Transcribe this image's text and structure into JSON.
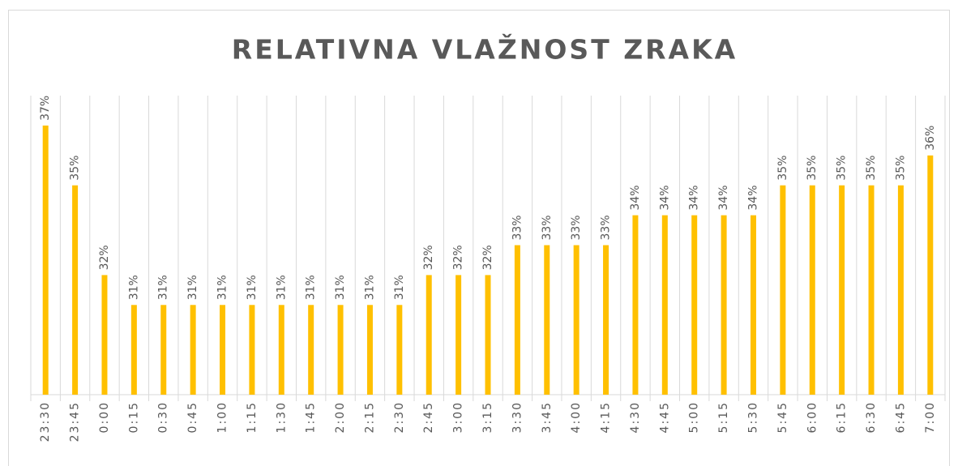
{
  "chart_data": {
    "type": "bar",
    "title": "RELATIVNA VLAŽNOST ZRAKA",
    "categories": [
      "23:30",
      "23:45",
      "0:00",
      "0:15",
      "0:30",
      "0:45",
      "1:00",
      "1:15",
      "1:30",
      "1:45",
      "2:00",
      "2:15",
      "2:30",
      "2:45",
      "3:00",
      "3:15",
      "3:30",
      "3:45",
      "4:00",
      "4:15",
      "4:30",
      "4:45",
      "5:00",
      "5:15",
      "5:30",
      "5:45",
      "6:00",
      "6:15",
      "6:30",
      "6:45",
      "7:00"
    ],
    "values": [
      37,
      35,
      32,
      31,
      31,
      31,
      31,
      31,
      31,
      31,
      31,
      31,
      31,
      32,
      32,
      32,
      33,
      33,
      33,
      33,
      34,
      34,
      34,
      34,
      34,
      35,
      35,
      35,
      35,
      35,
      36
    ],
    "value_labels": [
      "37%",
      "35%",
      "32%",
      "31%",
      "31%",
      "31%",
      "31%",
      "31%",
      "31%",
      "31%",
      "31%",
      "31%",
      "31%",
      "32%",
      "32%",
      "32%",
      "33%",
      "33%",
      "33%",
      "33%",
      "34%",
      "34%",
      "34%",
      "34%",
      "34%",
      "35%",
      "35%",
      "35%",
      "35%",
      "35%",
      "36%"
    ],
    "color": "#ffc000",
    "ylim": [
      28,
      38
    ]
  }
}
